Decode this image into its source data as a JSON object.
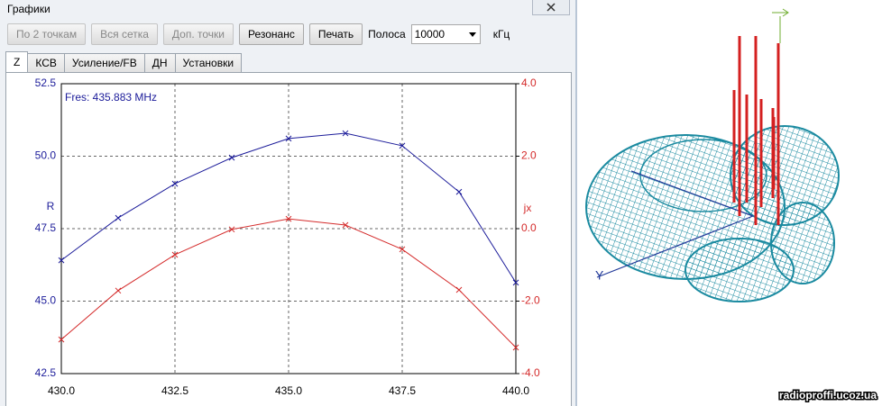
{
  "window": {
    "title": "Графики"
  },
  "toolbar": {
    "buttons": [
      {
        "label": "По 2 точкам",
        "enabled": false
      },
      {
        "label": "Вся сетка",
        "enabled": false
      },
      {
        "label": "Доп. точки",
        "enabled": false
      },
      {
        "label": "Резонанс",
        "enabled": true
      },
      {
        "label": "Печать",
        "enabled": true
      }
    ],
    "band_label": "Полоса",
    "band_value": "10000",
    "band_unit": "кГц"
  },
  "tabs": [
    "Z",
    "КСВ",
    "Усиление/FB",
    "ДН",
    "Установки"
  ],
  "chart_data": {
    "type": "line",
    "annotation": "Fres: 435.883 MHz",
    "ylabel": "R",
    "y2label": "jx",
    "x": [
      430,
      431.25,
      432.5,
      433.75,
      435,
      436.25,
      437.5,
      438.75,
      440
    ],
    "series": [
      {
        "name": "R",
        "color": "#1c1c9a",
        "values": [
          46.41,
          47.87,
          49.05,
          49.95,
          50.61,
          50.79,
          50.36,
          48.77,
          45.64
        ]
      },
      {
        "name": "jx",
        "color": "#d42a2a",
        "axis": "y2",
        "values": [
          -3.06,
          -1.71,
          -0.72,
          -0.02,
          0.27,
          0.1,
          -0.57,
          -1.69,
          -3.28
        ]
      }
    ],
    "xlim": [
      430,
      440
    ],
    "xticks": [
      {
        "value": 430,
        "label": "430.0"
      },
      432.5,
      {
        "value": 435,
        "label": "435.0"
      },
      437.5,
      {
        "value": 440,
        "label": "440.0"
      }
    ],
    "ylim": [
      42.5,
      52.5
    ],
    "yticks": [
      42.5,
      {
        "value": 45,
        "label": "45.0"
      },
      47.5,
      {
        "value": 50,
        "label": "50.0"
      },
      52.5
    ],
    "y2lim": [
      -4,
      4
    ],
    "y2ticks": [
      {
        "value": -4,
        "label": "-4.0"
      },
      {
        "value": -2,
        "label": "-2.0"
      },
      {
        "value": 0,
        "label": "0.0"
      },
      {
        "value": 2,
        "label": "2.0"
      },
      {
        "value": 4,
        "label": "4.0"
      }
    ],
    "grid": true
  },
  "pattern": {
    "axis_label": "Y"
  },
  "watermark": "radioproffi.ucoz.ua"
}
